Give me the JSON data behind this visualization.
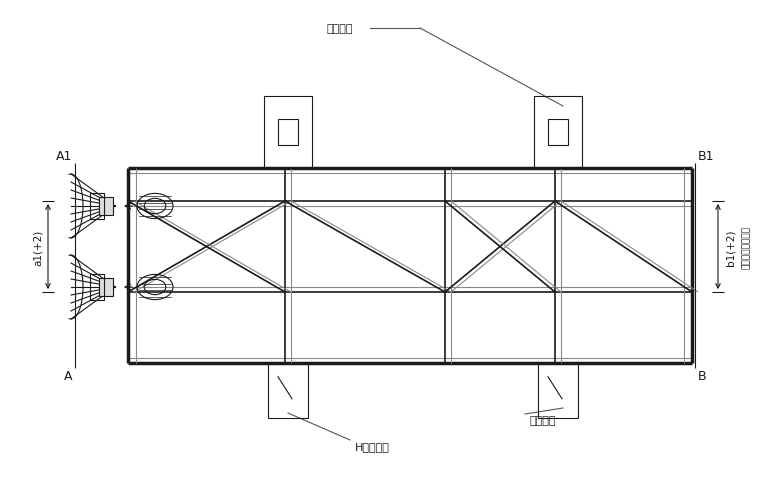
{
  "bg_color": "#ffffff",
  "line_color": "#1a1a1a",
  "gray_color": "#888888",
  "annotations": {
    "fixed_block": "固定挡块",
    "fixed_wedge": "固定檔子",
    "H_pad": "H型锂垫件",
    "a1": "a1(+2)",
    "b1": "b1(+2)",
    "guarantee": "保证锂管中心距离",
    "A1": "A1",
    "A": "A",
    "B1": "B1",
    "B": "B"
  }
}
